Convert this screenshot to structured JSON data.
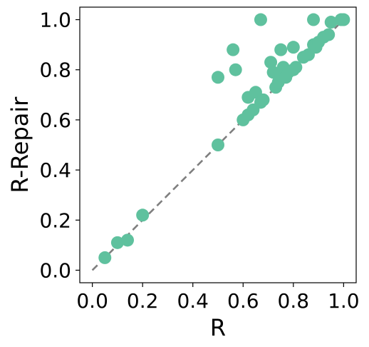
{
  "chart_data": {
    "type": "scatter",
    "title": "",
    "xlabel": "R",
    "ylabel": "R-Repair",
    "xlim": [
      -0.05,
      1.05
    ],
    "ylim": [
      -0.05,
      1.05
    ],
    "xticks": [
      0.0,
      0.2,
      0.4,
      0.6,
      0.8,
      1.0
    ],
    "yticks": [
      0.0,
      0.2,
      0.4,
      0.6,
      0.8,
      1.0
    ],
    "xtick_labels": [
      "0.0",
      "0.2",
      "0.4",
      "0.6",
      "0.8",
      "1.0"
    ],
    "ytick_labels": [
      "0.0",
      "0.2",
      "0.4",
      "0.6",
      "0.8",
      "1.0"
    ],
    "grid": false,
    "reference_line": {
      "x": [
        0.0,
        1.0
      ],
      "y": [
        0.0,
        1.0
      ],
      "style": "dashed",
      "color": "#7f7f7f"
    },
    "point_color": "#5fc19e",
    "points": [
      {
        "x": 0.05,
        "y": 0.05
      },
      {
        "x": 0.1,
        "y": 0.11
      },
      {
        "x": 0.14,
        "y": 0.12
      },
      {
        "x": 0.2,
        "y": 0.22
      },
      {
        "x": 0.5,
        "y": 0.5
      },
      {
        "x": 0.5,
        "y": 0.77
      },
      {
        "x": 0.56,
        "y": 0.88
      },
      {
        "x": 0.57,
        "y": 0.8
      },
      {
        "x": 0.6,
        "y": 0.6
      },
      {
        "x": 0.62,
        "y": 0.62
      },
      {
        "x": 0.62,
        "y": 0.69
      },
      {
        "x": 0.64,
        "y": 0.64
      },
      {
        "x": 0.65,
        "y": 0.71
      },
      {
        "x": 0.67,
        "y": 0.67
      },
      {
        "x": 0.67,
        "y": 1.0
      },
      {
        "x": 0.68,
        "y": 0.68
      },
      {
        "x": 0.71,
        "y": 0.83
      },
      {
        "x": 0.72,
        "y": 0.79
      },
      {
        "x": 0.73,
        "y": 0.73
      },
      {
        "x": 0.74,
        "y": 0.75
      },
      {
        "x": 0.75,
        "y": 0.88
      },
      {
        "x": 0.75,
        "y": 0.78
      },
      {
        "x": 0.76,
        "y": 0.81
      },
      {
        "x": 0.77,
        "y": 0.77
      },
      {
        "x": 0.78,
        "y": 0.79
      },
      {
        "x": 0.8,
        "y": 0.89
      },
      {
        "x": 0.8,
        "y": 0.8
      },
      {
        "x": 0.81,
        "y": 0.81
      },
      {
        "x": 0.84,
        "y": 0.85
      },
      {
        "x": 0.86,
        "y": 0.86
      },
      {
        "x": 0.88,
        "y": 0.9
      },
      {
        "x": 0.88,
        "y": 1.0
      },
      {
        "x": 0.89,
        "y": 0.89
      },
      {
        "x": 0.9,
        "y": 0.91
      },
      {
        "x": 0.92,
        "y": 0.93
      },
      {
        "x": 0.94,
        "y": 0.94
      },
      {
        "x": 0.95,
        "y": 0.99
      },
      {
        "x": 0.99,
        "y": 1.0
      },
      {
        "x": 1.0,
        "y": 1.0
      }
    ]
  }
}
